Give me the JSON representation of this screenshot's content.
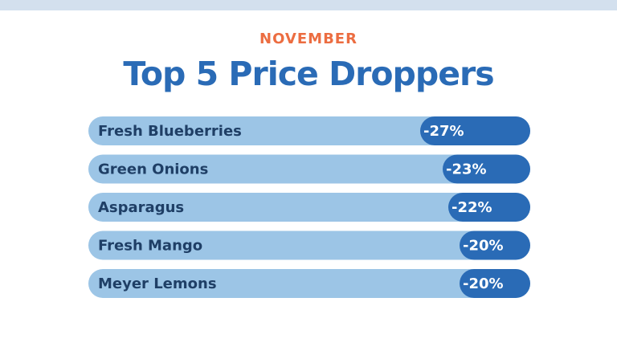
{
  "header": {
    "month": "NOVEMBER",
    "title": "Top 5 Price Droppers"
  },
  "colors": {
    "band": "#d3e0ee",
    "track": "#9cc5e6",
    "pill": "#2a6bb6",
    "month": "#ec6d41",
    "title": "#2a6bb6",
    "label": "#1f3f66"
  },
  "chart_data": {
    "type": "bar",
    "categories": [
      "Fresh Blueberries",
      "Green Onions",
      "Asparagus",
      "Fresh Mango",
      "Meyer Lemons"
    ],
    "values": [
      -27,
      -23,
      -22,
      -20,
      -20
    ],
    "value_labels": [
      "-27%",
      "-23%",
      "-22%",
      "-20%",
      "-20%"
    ],
    "unit": "%"
  }
}
